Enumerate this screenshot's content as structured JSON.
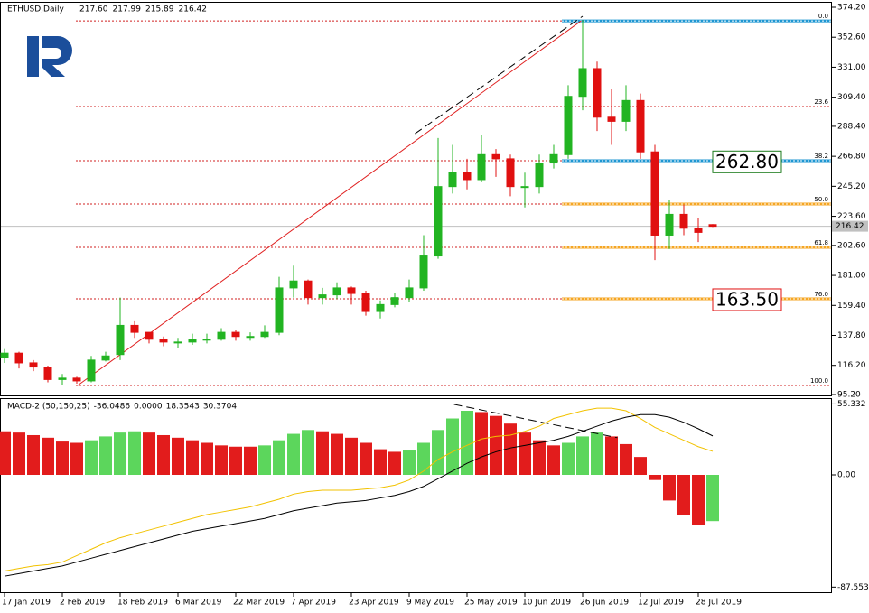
{
  "chart_data": {
    "type": "candlestick",
    "symbol": "ETHUSD,Daily",
    "last_bar_labels": [
      "217.60",
      "217.99",
      "215.89",
      "216.42"
    ],
    "categories": [
      "17 Jan 2019",
      null,
      null,
      null,
      "2 Feb 2019",
      null,
      null,
      null,
      "18 Feb 2019",
      null,
      null,
      null,
      "6 Mar 2019",
      null,
      null,
      null,
      "22 Mar 2019",
      null,
      null,
      null,
      "7 Apr 2019",
      null,
      null,
      null,
      "23 Apr 2019",
      null,
      null,
      null,
      "9 May 2019",
      null,
      null,
      null,
      "25 May 2019",
      null,
      null,
      null,
      "10 Jun 2019",
      null,
      null,
      null,
      "26 Jun 2019",
      null,
      null,
      null,
      "12 Jul 2019",
      null,
      null,
      null,
      "28 Jul 2019",
      null
    ],
    "open": [
      122,
      125,
      118,
      115,
      106,
      107,
      105,
      120,
      124,
      145,
      140,
      135,
      133,
      133,
      135,
      135,
      140,
      137,
      137,
      140,
      172,
      177,
      165,
      167,
      172,
      168,
      155,
      160,
      165,
      172,
      195,
      245,
      255,
      250,
      268,
      265,
      245,
      245,
      262,
      268,
      310,
      330,
      295,
      292,
      307,
      270,
      210,
      225,
      215,
      217.6
    ],
    "high": [
      128,
      126,
      120,
      116,
      110,
      108,
      123,
      126,
      165,
      148,
      140,
      137,
      136,
      139,
      139,
      143,
      142,
      140,
      145,
      180,
      188,
      178,
      172,
      176,
      173,
      170,
      163,
      168,
      178,
      210,
      280,
      275,
      265,
      282,
      272,
      268,
      255,
      268,
      275,
      318,
      365,
      335,
      315,
      318,
      312,
      275,
      235,
      232,
      222,
      217.99
    ],
    "low": [
      118,
      114,
      112,
      104,
      102,
      103,
      104,
      119,
      120,
      136,
      132,
      130,
      129,
      131,
      132,
      134,
      134,
      134,
      136,
      138,
      165,
      160,
      160,
      164,
      160,
      152,
      150,
      158,
      162,
      170,
      193,
      240,
      243,
      248,
      252,
      238,
      230,
      240,
      258,
      265,
      300,
      285,
      275,
      285,
      265,
      192,
      200,
      210,
      205,
      215.89
    ],
    "close": [
      125,
      118,
      115,
      106,
      107,
      105,
      120,
      123,
      145,
      140,
      135,
      133,
      133,
      135,
      135,
      140,
      137,
      137,
      140,
      172,
      177,
      165,
      167,
      172,
      168,
      155,
      160,
      165,
      172,
      195,
      245,
      255,
      250,
      268,
      265,
      245,
      245,
      262,
      268,
      310,
      330,
      295,
      292,
      307,
      270,
      210,
      225,
      215,
      212,
      216.42
    ],
    "up_color": "#22b422",
    "down_color": "#e01010",
    "ylim": [
      93.9,
      378.1
    ],
    "yticks": [
      {
        "value": 374.2,
        "label": "374.20"
      },
      {
        "value": 352.6,
        "label": "352.60"
      },
      {
        "value": 331,
        "label": "331.00"
      },
      {
        "value": 309.4,
        "label": "309.40"
      },
      {
        "value": 288.4,
        "label": "288.40"
      },
      {
        "value": 266.8,
        "label": "266.80"
      },
      {
        "value": 245.2,
        "label": "245.20"
      },
      {
        "value": 223.6,
        "label": "223.60"
      },
      {
        "value": 202.6,
        "label": "202.60"
      },
      {
        "value": 181,
        "label": "181.00"
      },
      {
        "value": 159.4,
        "label": "159.40"
      },
      {
        "value": 137.8,
        "label": "137.80"
      },
      {
        "value": 116.2,
        "label": "116.20"
      },
      {
        "value": 95.2,
        "label": "95.20"
      }
    ],
    "fibonacci": {
      "labels": [
        "0.0",
        "23.6",
        "38.2",
        "50.0",
        "61.8",
        "76.0",
        "100.0"
      ],
      "prices": [
        364.4,
        302.7,
        263.6,
        232.4,
        201.2,
        164.1,
        101.7
      ],
      "color": "#d02020"
    },
    "levels": [
      {
        "price": 364.4,
        "color": "#1e96d2"
      },
      {
        "price": 263.6,
        "color": "#1e96d2"
      },
      {
        "price": 232.4,
        "color": "#f5a623"
      },
      {
        "price": 201.2,
        "color": "#f5a623"
      },
      {
        "price": 164.1,
        "color": "#f5a623"
      }
    ],
    "annotations": [
      {
        "value": 262.8,
        "label": "262.80",
        "color": "#1a7a1a"
      },
      {
        "value": 163.5,
        "label": "163.50",
        "color": "#e01010"
      }
    ],
    "trendlines": [
      {
        "x": [
          5.06,
          39.9
        ],
        "y": [
          101.7,
          364.4
        ],
        "color": "#e02020",
        "dash": false
      },
      {
        "x": [
          28.4,
          40
        ],
        "y": [
          283.1,
          367.7
        ],
        "color": "#000000",
        "dash": true
      }
    ],
    "macd": {
      "name": "MACD-2 (50,150,25)",
      "buffer": {
        "value": 0,
        "label": "0.0000"
      },
      "histogram": [
        34,
        33,
        31,
        29,
        26,
        25,
        27,
        30,
        33,
        34,
        33,
        31,
        29,
        27,
        25,
        23,
        22,
        22,
        23,
        27,
        32,
        35,
        34,
        32,
        29,
        25,
        20,
        18,
        19,
        25,
        35,
        44,
        50,
        49,
        46,
        40,
        33,
        27,
        23,
        25,
        30,
        33,
        30,
        24,
        14,
        -4,
        -20,
        -31,
        -39,
        -36.0486
      ],
      "signal": [
        -75,
        -73,
        -71,
        -70,
        -68,
        -63,
        -58,
        -53,
        -49,
        -46,
        -43,
        -40,
        -37,
        -34,
        -31,
        -29,
        -27,
        -25,
        -22,
        -19,
        -15,
        -13,
        -12,
        -12,
        -12,
        -11,
        -10,
        -8,
        -4,
        3,
        12,
        18,
        23,
        28,
        30,
        31,
        34,
        38,
        44,
        47,
        50,
        52,
        52,
        50,
        44,
        37,
        32,
        27,
        22,
        18.3543
      ],
      "main": [
        -79,
        -77,
        -75,
        -73,
        -71,
        -68,
        -65,
        -62,
        -59,
        -56,
        -53,
        -50,
        -47,
        -44,
        -42,
        -40,
        -38,
        -36,
        -34,
        -31,
        -28,
        -26,
        -24,
        -22,
        -21,
        -20,
        -18,
        -16,
        -13,
        -9,
        -3,
        3,
        9,
        14,
        18,
        21,
        23,
        25,
        27,
        30,
        34,
        38,
        42,
        45,
        47,
        47,
        45,
        41,
        36,
        30.3704
      ],
      "main_color": "#000000",
      "signal_color": "#f2c200",
      "up_color": "#5cd65c",
      "down_color": "#e21c1c",
      "ylim": [
        -92.25,
        59.86
      ],
      "yticks": [
        55.332,
        {
          "value": 0,
          "label": "0.00"
        },
        -87.5532
      ],
      "trendlines": [
        {
          "x": [
            31.1,
            42.4
          ],
          "y": [
            55,
            29
          ],
          "color": "#000000",
          "dash": true
        }
      ]
    }
  }
}
